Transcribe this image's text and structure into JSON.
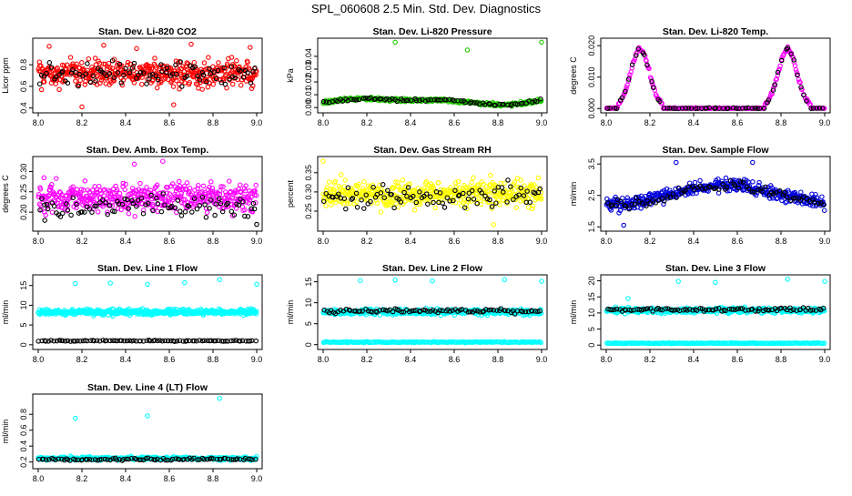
{
  "page": {
    "title": "SPL_060608  2.5 Min. Std. Dev. Diagnostics"
  },
  "colors": {
    "red": "#ff0000",
    "green": "#22cc00",
    "magenta": "#ff00ff",
    "yellow": "#ffff00",
    "blue": "#0000dd",
    "cyan": "#00ffff",
    "black": "#000000"
  },
  "chart_data": [
    {
      "id": "co2",
      "type": "scatter",
      "title": "Stan. Dev. Li-820 CO2",
      "ylabel": "Licor ppm",
      "xlim": [
        8.0,
        9.0
      ],
      "ylim": [
        0.38,
        1.02
      ],
      "xticks": [
        "8.0",
        "8.2",
        "8.4",
        "8.6",
        "8.8",
        "9.0"
      ],
      "yticks": [
        {
          "v": 0.4,
          "label": "0.4"
        },
        {
          "v": 0.6,
          "label": "0.6"
        },
        {
          "v": 0.8,
          "label": "0.8"
        }
      ],
      "series": [
        {
          "name": "all",
          "color": "#ff0000",
          "model": "band",
          "count": 440,
          "center": 0.72,
          "spread": 0.12,
          "outliers": [
            [
              8.05,
              0.97
            ],
            [
              8.3,
              0.98
            ],
            [
              8.7,
              0.99
            ],
            [
              8.2,
              0.41
            ],
            [
              8.62,
              0.43
            ],
            [
              8.97,
              0.96
            ],
            [
              8.45,
              0.95
            ]
          ]
        },
        {
          "name": "subset",
          "color": "#000000",
          "model": "band",
          "count": 90,
          "center": 0.72,
          "spread": 0.1,
          "outliers": []
        }
      ]
    },
    {
      "id": "pressure",
      "type": "scatter",
      "title": "Stan. Dev. Li-820 Pressure",
      "ylabel": "kPa",
      "xlim": [
        8.0,
        9.0
      ],
      "ylim": [
        -0.002,
        0.052
      ],
      "xticks": [
        "8.0",
        "8.2",
        "8.4",
        "8.6",
        "8.8",
        "9.0"
      ],
      "yticks": [
        {
          "v": 0.0,
          "label": "0.00"
        },
        {
          "v": 0.01,
          "label": "0.01"
        },
        {
          "v": 0.02,
          "label": "0.02"
        },
        {
          "v": 0.03,
          "label": "0.03"
        },
        {
          "v": 0.04,
          "label": "0.04"
        }
      ],
      "series": [
        {
          "name": "all",
          "color": "#22cc00",
          "model": "pressure",
          "count": 420,
          "outliers": [
            [
              8.33,
              0.051
            ],
            [
              8.66,
              0.045
            ],
            [
              9.0,
              0.051
            ]
          ]
        },
        {
          "name": "subset",
          "color": "#000000",
          "model": "pressure",
          "count": 80,
          "outliers": []
        }
      ]
    },
    {
      "id": "temp",
      "type": "scatter",
      "title": "Stan. Dev. Li-820 Temp.",
      "ylabel": "degrees C",
      "xlim": [
        8.0,
        9.0
      ],
      "ylim": [
        -0.0005,
        0.0215
      ],
      "xticks": [
        "8.0",
        "8.2",
        "8.4",
        "8.6",
        "8.8",
        "9.0"
      ],
      "yticks": [
        {
          "v": 0.0,
          "label": "0.000"
        },
        {
          "v": 0.01,
          "label": "0.010"
        },
        {
          "v": 0.02,
          "label": "0.020"
        }
      ],
      "series": [
        {
          "name": "all",
          "color": "#ff00ff",
          "model": "temp",
          "count": 240,
          "outliers": []
        },
        {
          "name": "subset",
          "color": "#000000",
          "model": "temp",
          "count": 70,
          "outliers": []
        }
      ]
    },
    {
      "id": "boxtemp",
      "type": "scatter",
      "title": "Stan. Dev. Amb. Box Temp.",
      "ylabel": "degrees C",
      "xlim": [
        8.0,
        9.0
      ],
      "ylim": [
        0.16,
        0.33
      ],
      "xticks": [
        "8.0",
        "8.2",
        "8.4",
        "8.6",
        "8.8",
        "9.0"
      ],
      "yticks": [
        {
          "v": 0.2,
          "label": "0.20"
        },
        {
          "v": 0.25,
          "label": "0.25"
        },
        {
          "v": 0.3,
          "label": "0.30"
        }
      ],
      "series": [
        {
          "name": "all",
          "color": "#ff00ff",
          "model": "band",
          "count": 440,
          "center": 0.235,
          "spread": 0.035,
          "outliers": [
            [
              8.57,
              0.325
            ],
            [
              8.44,
              0.318
            ]
          ]
        },
        {
          "name": "subset",
          "color": "#000000",
          "model": "band",
          "count": 90,
          "center": 0.215,
          "spread": 0.025,
          "outliers": [
            [
              9.0,
              0.17
            ],
            [
              8.03,
              0.18
            ]
          ]
        }
      ]
    },
    {
      "id": "rh",
      "type": "scatter",
      "title": "Stan. Dev. Gas Stream RH",
      "ylabel": "percent",
      "xlim": [
        8.0,
        9.0
      ],
      "ylim": [
        0.205,
        0.385
      ],
      "xticks": [
        "8.0",
        "8.2",
        "8.4",
        "8.6",
        "8.8",
        "9.0"
      ],
      "yticks": [
        {
          "v": 0.25,
          "label": "0.25"
        },
        {
          "v": 0.3,
          "label": "0.30"
        },
        {
          "v": 0.35,
          "label": "0.35"
        }
      ],
      "series": [
        {
          "name": "all",
          "color": "#ffff00",
          "model": "band",
          "count": 440,
          "center": 0.295,
          "spread": 0.035,
          "outliers": [
            [
              8.0,
              0.38
            ],
            [
              8.78,
              0.215
            ]
          ]
        },
        {
          "name": "subset",
          "color": "#000000",
          "model": "band",
          "count": 90,
          "center": 0.29,
          "spread": 0.03,
          "outliers": []
        }
      ]
    },
    {
      "id": "sampleflow",
      "type": "scatter",
      "title": "Stan. Dev. Sample Flow",
      "ylabel": "ml/min",
      "xlim": [
        8.0,
        9.0
      ],
      "ylim": [
        1.45,
        3.65
      ],
      "xticks": [
        "8.0",
        "8.2",
        "8.4",
        "8.6",
        "8.8",
        "9.0"
      ],
      "yticks": [
        {
          "v": 1.5,
          "label": "1.5"
        },
        {
          "v": 2.5,
          "label": "2.5"
        },
        {
          "v": 3.5,
          "label": "3.5"
        }
      ],
      "series": [
        {
          "name": "all",
          "color": "#0000dd",
          "model": "hump",
          "count": 420,
          "base": 2.2,
          "peak": 2.85,
          "spread": 0.2,
          "outliers": [
            [
              8.32,
              3.55
            ],
            [
              8.67,
              3.55
            ],
            [
              8.08,
              1.55
            ]
          ]
        },
        {
          "name": "subset",
          "color": "#000000",
          "model": "hump",
          "count": 80,
          "base": 2.2,
          "peak": 2.8,
          "spread": 0.15,
          "outliers": []
        }
      ]
    },
    {
      "id": "line1",
      "type": "scatter",
      "title": "Stan. Dev. Line 1 Flow",
      "ylabel": "ml/min",
      "xlim": [
        8.0,
        9.0
      ],
      "ylim": [
        -0.5,
        17
      ],
      "xticks": [
        "8.0",
        "8.2",
        "8.4",
        "8.6",
        "8.8",
        "9.0"
      ],
      "yticks": [
        {
          "v": 0,
          "label": "0"
        },
        {
          "v": 5,
          "label": "5"
        },
        {
          "v": 10,
          "label": "10"
        },
        {
          "v": 15,
          "label": "15"
        }
      ],
      "series": [
        {
          "name": "all",
          "color": "#00ffff",
          "model": "band",
          "count": 440,
          "center": 8.3,
          "spread": 0.7,
          "outliers": [
            [
              8.17,
              15.5
            ],
            [
              8.33,
              15.6
            ],
            [
              8.5,
              15.3
            ],
            [
              8.67,
              15.7
            ],
            [
              8.83,
              16.5
            ],
            [
              9.0,
              15.3
            ]
          ]
        },
        {
          "name": "subset",
          "color": "#000000",
          "model": "flat",
          "count": 90,
          "level": 1.0,
          "spread": 0.15,
          "outliers": []
        }
      ]
    },
    {
      "id": "line2",
      "type": "scatter",
      "title": "Stan. Dev. Line 2 Flow",
      "ylabel": "ml/min",
      "xlim": [
        8.0,
        9.0
      ],
      "ylim": [
        -0.5,
        16
      ],
      "xticks": [
        "8.0",
        "8.2",
        "8.4",
        "8.6",
        "8.8",
        "9.0"
      ],
      "yticks": [
        {
          "v": 0,
          "label": "0"
        },
        {
          "v": 5,
          "label": "5"
        },
        {
          "v": 10,
          "label": "10"
        },
        {
          "v": 15,
          "label": "15"
        }
      ],
      "series": [
        {
          "name": "all",
          "color": "#00ffff",
          "model": "band",
          "count": 400,
          "center": 7.8,
          "spread": 0.7,
          "outliers": [
            [
              8.17,
              15.3
            ],
            [
              8.33,
              15.4
            ],
            [
              8.5,
              15.2
            ],
            [
              8.83,
              15.5
            ],
            [
              9.0,
              15.1
            ]
          ]
        },
        {
          "name": "lower",
          "color": "#00ffff",
          "model": "flat",
          "count": 200,
          "level": 0.6,
          "spread": 0.12,
          "outliers": []
        },
        {
          "name": "subset",
          "color": "#000000",
          "model": "band",
          "count": 90,
          "center": 8.0,
          "spread": 0.5,
          "outliers": []
        }
      ]
    },
    {
      "id": "line3",
      "type": "scatter",
      "title": "Stan. Dev. Line 3 Flow",
      "ylabel": "ml/min",
      "xlim": [
        8.0,
        9.0
      ],
      "ylim": [
        -0.5,
        21
      ],
      "xticks": [
        "8.0",
        "8.2",
        "8.4",
        "8.6",
        "8.8",
        "9.0"
      ],
      "yticks": [
        {
          "v": 0,
          "label": "0"
        },
        {
          "v": 5,
          "label": "5"
        },
        {
          "v": 10,
          "label": "10"
        },
        {
          "v": 15,
          "label": "15"
        },
        {
          "v": 20,
          "label": "20"
        }
      ],
      "series": [
        {
          "name": "all",
          "color": "#00ffff",
          "model": "band",
          "count": 400,
          "center": 10.8,
          "spread": 0.8,
          "outliers": [
            [
              8.1,
              14.5
            ],
            [
              8.33,
              19.8
            ],
            [
              8.5,
              19.5
            ],
            [
              8.83,
              20.5
            ],
            [
              9.0,
              19.8
            ]
          ]
        },
        {
          "name": "lower",
          "color": "#00ffff",
          "model": "flat",
          "count": 200,
          "level": 0.6,
          "spread": 0.12,
          "outliers": []
        },
        {
          "name": "subset",
          "color": "#000000",
          "model": "band",
          "count": 90,
          "center": 11.0,
          "spread": 0.5,
          "outliers": []
        }
      ]
    },
    {
      "id": "line4",
      "type": "scatter",
      "title": "Stan. Dev. Line 4 (LT) Flow",
      "ylabel": "ml/min",
      "xlim": [
        8.0,
        9.0
      ],
      "ylim": [
        0.15,
        1.02
      ],
      "xticks": [
        "8.0",
        "8.2",
        "8.4",
        "8.6",
        "8.8",
        "9.0"
      ],
      "yticks": [
        {
          "v": 0.2,
          "label": "0.2"
        },
        {
          "v": 0.4,
          "label": "0.4"
        },
        {
          "v": 0.6,
          "label": "0.6"
        },
        {
          "v": 0.8,
          "label": "0.8"
        }
      ],
      "series": [
        {
          "name": "all",
          "color": "#00ffff",
          "model": "band",
          "count": 420,
          "center": 0.245,
          "spread": 0.02,
          "outliers": [
            [
              8.17,
              0.75
            ],
            [
              8.5,
              0.78
            ],
            [
              8.83,
              1.0
            ]
          ]
        },
        {
          "name": "subset",
          "color": "#000000",
          "model": "band",
          "count": 90,
          "center": 0.235,
          "spread": 0.015,
          "outliers": []
        }
      ]
    }
  ]
}
